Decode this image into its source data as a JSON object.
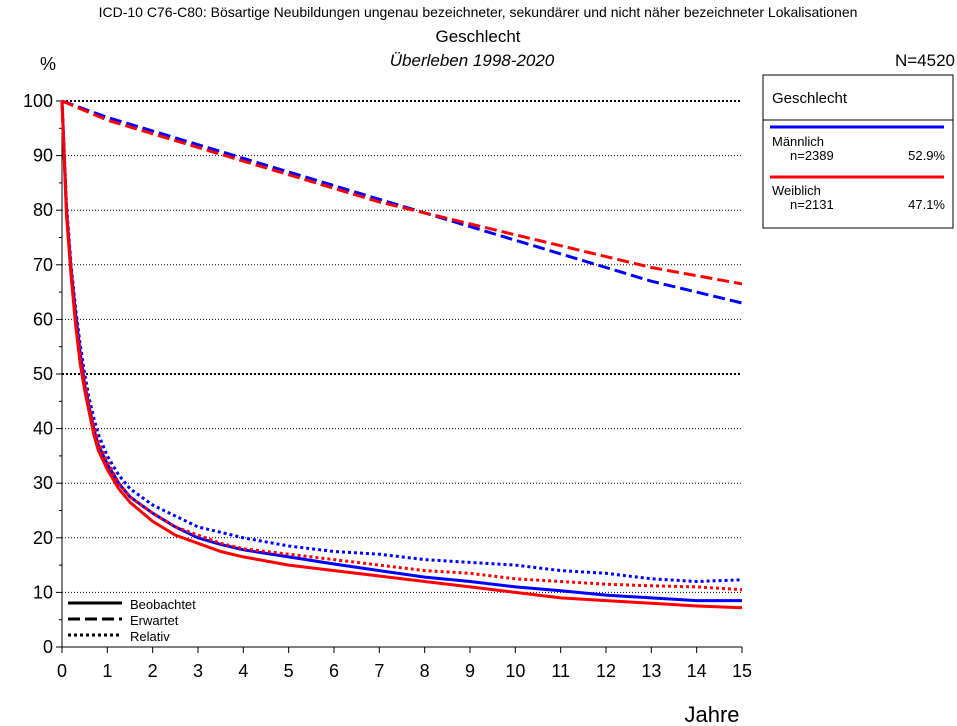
{
  "chart_data": {
    "type": "line",
    "title": "ICD-10 C76-C80: Bösartige Neubildungen ungenau bezeichneter, sekundärer und nicht näher bezeichneter Lokalisationen",
    "subtitle": "Geschlecht",
    "subtitle2": "Überleben 1998-2020",
    "total_n": "N=4520",
    "ylabel": "%",
    "xlabel": "Jahre",
    "xlim": [
      0,
      15
    ],
    "ylim": [
      0,
      100
    ],
    "xticks": [
      "0",
      "1",
      "2",
      "3",
      "4",
      "5",
      "6",
      "7",
      "8",
      "9",
      "10",
      "11",
      "12",
      "13",
      "14",
      "15"
    ],
    "yticks": [
      "0",
      "10",
      "20",
      "30",
      "40",
      "50",
      "60",
      "70",
      "80",
      "90",
      "100"
    ],
    "grid": "horizontal dotted",
    "legend_group": {
      "title": "Geschlecht",
      "placement": "top-right",
      "entries": [
        {
          "name": "Männlich",
          "n": "n=2389",
          "pct": "52.9%",
          "color": "#0000ff"
        },
        {
          "name": "Weiblich",
          "n": "n=2131",
          "pct": "47.1%",
          "color": "#ff0000"
        }
      ]
    },
    "legend_style": {
      "placement": "bottom-left",
      "entries": [
        "Beobachtet",
        "Erwartet",
        "Relativ"
      ]
    },
    "series": [
      {
        "group": "Männlich",
        "style": "Beobachtet",
        "color": "#0000ff",
        "x": [
          0,
          0.1,
          0.2,
          0.3,
          0.4,
          0.5,
          0.6,
          0.7,
          0.8,
          1,
          1.25,
          1.5,
          2,
          2.5,
          3,
          3.5,
          4,
          5,
          6,
          7,
          8,
          9,
          10,
          11,
          12,
          13,
          14,
          15
        ],
        "y": [
          100,
          80,
          69,
          61,
          54,
          48,
          44,
          40,
          37,
          33.5,
          30,
          27.5,
          24.5,
          22,
          20,
          18.8,
          17.8,
          16.5,
          15.2,
          14,
          12.8,
          12,
          11,
          10.3,
          9.5,
          9,
          8.5,
          8.5
        ]
      },
      {
        "group": "Weiblich",
        "style": "Beobachtet",
        "color": "#ff0000",
        "x": [
          0,
          0.1,
          0.2,
          0.3,
          0.4,
          0.5,
          0.6,
          0.7,
          0.8,
          1,
          1.25,
          1.5,
          2,
          2.5,
          3,
          3.5,
          4,
          5,
          6,
          7,
          8,
          9,
          10,
          11,
          12,
          13,
          14,
          15
        ],
        "y": [
          100,
          79,
          68,
          59,
          52,
          47,
          43,
          39,
          36,
          32.5,
          29,
          26.5,
          23,
          20.5,
          19,
          17.5,
          16.5,
          15,
          14,
          13,
          12,
          11,
          10,
          9,
          8.5,
          8,
          7.5,
          7.2
        ]
      },
      {
        "group": "Männlich",
        "style": "Erwartet",
        "color": "#0000ff",
        "x": [
          0,
          1,
          2,
          3,
          4,
          5,
          6,
          7,
          8,
          9,
          10,
          11,
          12,
          13,
          14,
          15
        ],
        "y": [
          100,
          97,
          94.5,
          92,
          89.5,
          87,
          84.5,
          82,
          79.5,
          77,
          74.5,
          72,
          69.5,
          67,
          65,
          63
        ]
      },
      {
        "group": "Weiblich",
        "style": "Erwartet",
        "color": "#ff0000",
        "x": [
          0,
          1,
          2,
          3,
          4,
          5,
          6,
          7,
          8,
          9,
          10,
          11,
          12,
          13,
          14,
          15
        ],
        "y": [
          100,
          96.5,
          94,
          91.5,
          89,
          86.5,
          84,
          81.5,
          79.5,
          77.5,
          75.5,
          73.5,
          71.5,
          69.5,
          68,
          66.5
        ]
      },
      {
        "group": "Männlich",
        "style": "Relativ",
        "color": "#0000ff",
        "x": [
          0,
          0.1,
          0.2,
          0.3,
          0.4,
          0.5,
          0.6,
          0.7,
          0.8,
          1,
          1.25,
          1.5,
          2,
          2.5,
          3,
          3.5,
          4,
          5,
          6,
          7,
          8,
          9,
          10,
          11,
          12,
          13,
          14,
          15
        ],
        "y": [
          100,
          81,
          70,
          62,
          55.5,
          50,
          45.5,
          42,
          39,
          35,
          31.5,
          29,
          26,
          24,
          22,
          21,
          20,
          18.5,
          17.5,
          17,
          16,
          15.5,
          15,
          14,
          13.5,
          12.5,
          12,
          12.3
        ]
      },
      {
        "group": "Weiblich",
        "style": "Relativ",
        "color": "#ff0000",
        "x": [
          0,
          0.1,
          0.2,
          0.3,
          0.4,
          0.5,
          0.6,
          0.7,
          0.8,
          1,
          1.25,
          1.5,
          2,
          2.5,
          3,
          3.5,
          4,
          5,
          6,
          7,
          8,
          9,
          10,
          11,
          12,
          13,
          14,
          15
        ],
        "y": [
          100,
          80,
          69,
          60,
          53.5,
          48.5,
          44,
          40.5,
          37.5,
          34,
          30,
          27.5,
          24.5,
          22,
          20.5,
          19,
          18,
          17,
          16,
          15,
          14,
          13.5,
          12.5,
          12,
          11.5,
          11.2,
          11,
          10.5
        ]
      }
    ]
  }
}
